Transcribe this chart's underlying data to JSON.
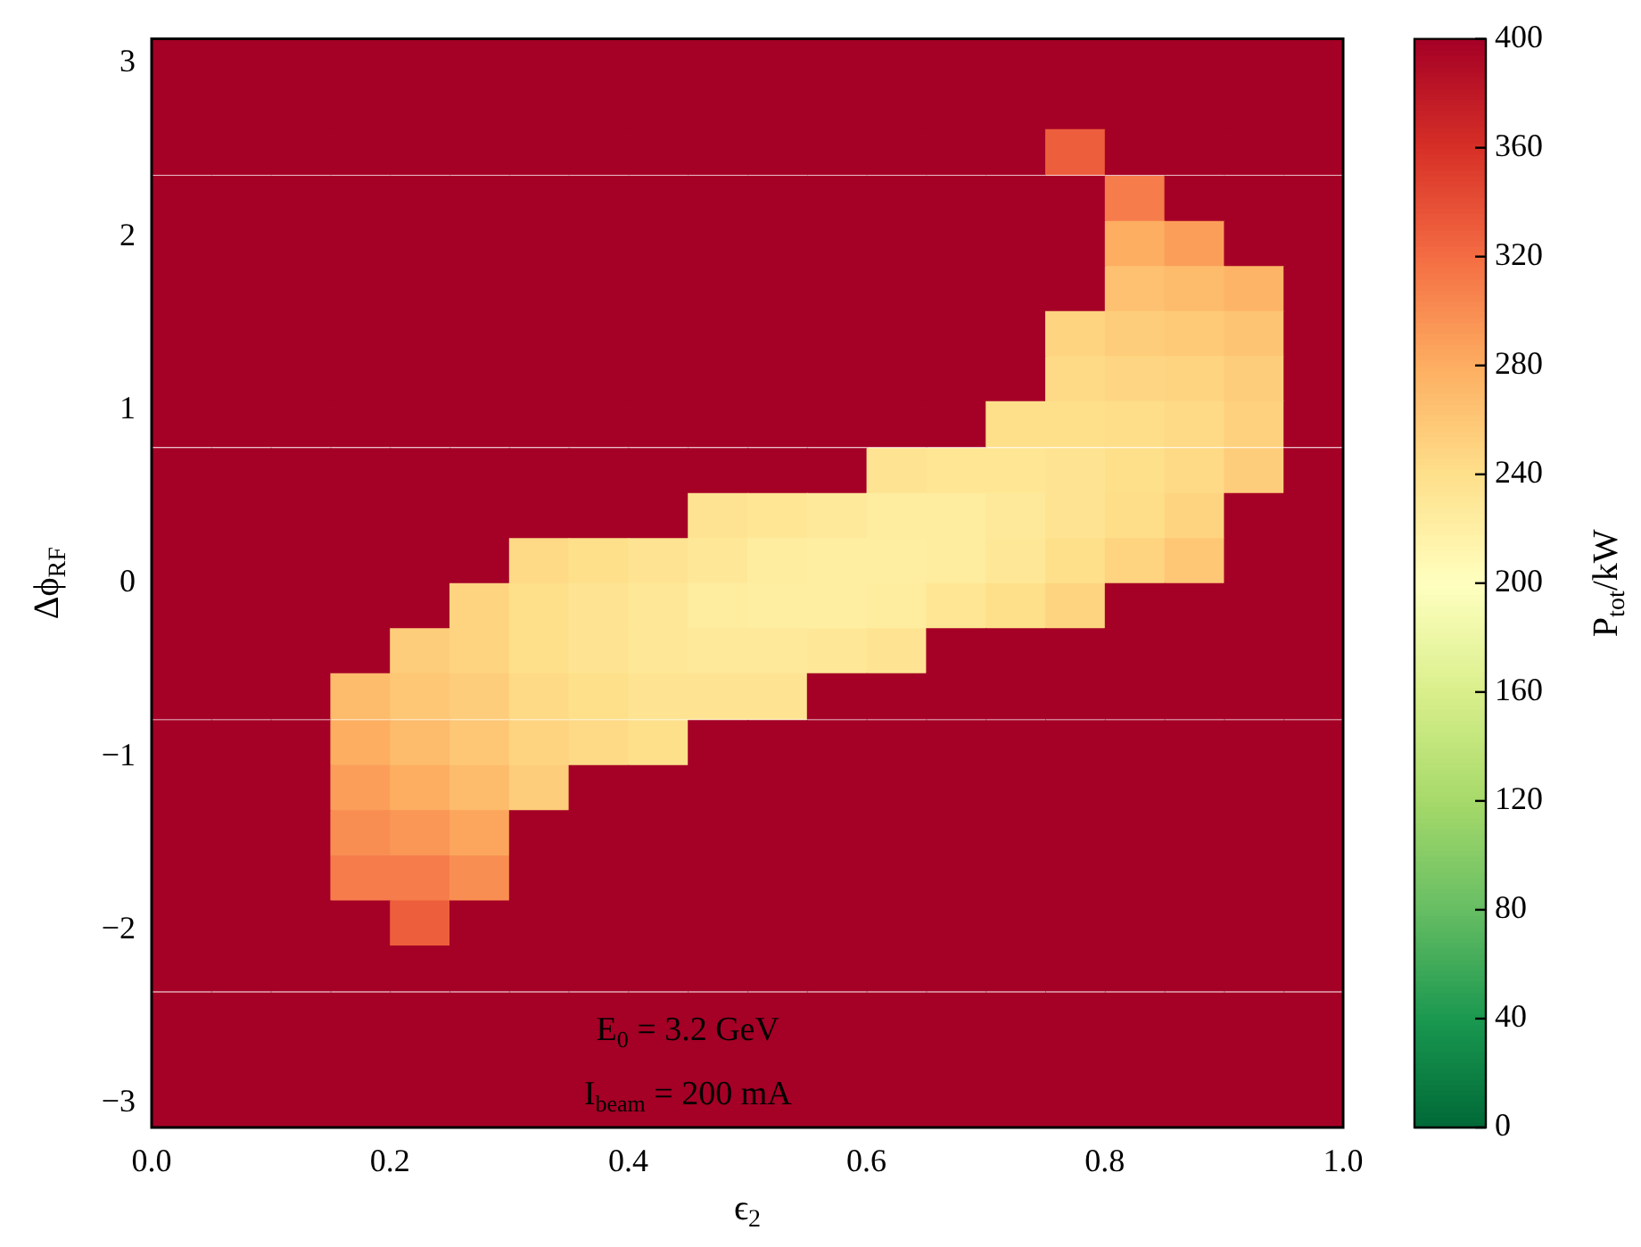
{
  "chart_data": {
    "type": "heatmap",
    "xlabel": "ϵ$_{2}$",
    "ylabel": "Δϕ$_{RF}$",
    "clabel": "P$_{tot}$/kW",
    "annotations": [
      "E$_{0}$ = 3.2 GeV",
      "I$_{beam}$ = 200 mA"
    ],
    "xlim": [
      0,
      1
    ],
    "xticks": [
      {
        "value": 0,
        "label": "0.0"
      },
      {
        "value": 0.2,
        "label": "0.2"
      },
      {
        "value": 0.4,
        "label": "0.4"
      },
      {
        "value": 0.6,
        "label": "0.6"
      },
      {
        "value": 0.8,
        "label": "0.8"
      },
      {
        "value": 1,
        "label": "1.0"
      }
    ],
    "ylim": [
      -3.14,
      3.14
    ],
    "yticks": [
      {
        "value": -3,
        "label": "−3"
      },
      {
        "value": -2,
        "label": "−2"
      },
      {
        "value": -1,
        "label": "−1"
      },
      0,
      1,
      2,
      3
    ],
    "clim": [
      0,
      400
    ],
    "cticks": [
      0,
      40,
      80,
      120,
      160,
      200,
      240,
      280,
      320,
      360,
      400
    ],
    "x": [
      0.025,
      0.075,
      0.125,
      0.175,
      0.225,
      0.275,
      0.325,
      0.375,
      0.425,
      0.475,
      0.525,
      0.575,
      0.625,
      0.675,
      0.725,
      0.775,
      0.825,
      0.875,
      0.925,
      0.975
    ],
    "y": [
      3.01,
      2.75,
      2.49,
      2.22,
      1.96,
      1.7,
      1.44,
      1.18,
      0.92,
      0.65,
      0.39,
      0.13,
      -0.13,
      -0.39,
      -0.65,
      -0.92,
      -1.18,
      -1.44,
      -1.7,
      -1.96,
      -2.22,
      -2.49,
      -2.75,
      -3.01
    ],
    "cells": [
      [
        400,
        400,
        400,
        400,
        400,
        400,
        400,
        400,
        400,
        400,
        400,
        400,
        400,
        400,
        400,
        400,
        400,
        400,
        400,
        400
      ],
      [
        400,
        400,
        400,
        400,
        400,
        400,
        400,
        400,
        400,
        400,
        400,
        400,
        400,
        400,
        400,
        400,
        400,
        400,
        400,
        400
      ],
      [
        400,
        400,
        400,
        400,
        400,
        400,
        400,
        400,
        400,
        400,
        400,
        400,
        400,
        400,
        400,
        330,
        400,
        400,
        400,
        400
      ],
      [
        400,
        400,
        400,
        400,
        400,
        400,
        400,
        400,
        400,
        400,
        400,
        400,
        400,
        400,
        400,
        400,
        310,
        400,
        400,
        400
      ],
      [
        400,
        400,
        400,
        400,
        400,
        400,
        400,
        400,
        400,
        400,
        400,
        400,
        400,
        400,
        400,
        400,
        280,
        290,
        400,
        400
      ],
      [
        400,
        400,
        400,
        400,
        400,
        400,
        400,
        400,
        400,
        400,
        400,
        400,
        400,
        400,
        400,
        400,
        265,
        270,
        275,
        400
      ],
      [
        400,
        400,
        400,
        400,
        400,
        400,
        400,
        400,
        400,
        400,
        400,
        400,
        400,
        400,
        400,
        250,
        255,
        258,
        262,
        400
      ],
      [
        400,
        400,
        400,
        400,
        400,
        400,
        400,
        400,
        400,
        400,
        400,
        400,
        400,
        400,
        400,
        245,
        248,
        250,
        255,
        400
      ],
      [
        400,
        400,
        400,
        400,
        400,
        400,
        400,
        400,
        400,
        400,
        400,
        400,
        400,
        400,
        240,
        240,
        242,
        245,
        252,
        400
      ],
      [
        400,
        400,
        400,
        400,
        400,
        400,
        400,
        400,
        400,
        400,
        400,
        400,
        235,
        232,
        232,
        235,
        240,
        245,
        255,
        400
      ],
      [
        400,
        400,
        400,
        400,
        400,
        400,
        400,
        400,
        400,
        235,
        232,
        228,
        225,
        225,
        228,
        235,
        242,
        250,
        400,
        400
      ],
      [
        400,
        400,
        400,
        400,
        400,
        400,
        245,
        240,
        235,
        230,
        225,
        222,
        222,
        225,
        230,
        240,
        250,
        260,
        400,
        400
      ],
      [
        400,
        400,
        400,
        400,
        400,
        250,
        240,
        235,
        230,
        225,
        222,
        222,
        225,
        232,
        240,
        250,
        400,
        400,
        400,
        400
      ],
      [
        400,
        400,
        400,
        400,
        255,
        250,
        240,
        235,
        230,
        228,
        228,
        230,
        235,
        400,
        400,
        400,
        400,
        400,
        400,
        400
      ],
      [
        400,
        400,
        400,
        270,
        260,
        255,
        245,
        240,
        235,
        235,
        235,
        400,
        400,
        400,
        400,
        400,
        400,
        400,
        400,
        400
      ],
      [
        400,
        400,
        400,
        280,
        270,
        260,
        250,
        245,
        240,
        400,
        400,
        400,
        400,
        400,
        400,
        400,
        400,
        400,
        400,
        400
      ],
      [
        400,
        400,
        400,
        290,
        280,
        270,
        255,
        400,
        400,
        400,
        400,
        400,
        400,
        400,
        400,
        400,
        400,
        400,
        400,
        400
      ],
      [
        400,
        400,
        400,
        300,
        295,
        285,
        400,
        400,
        400,
        400,
        400,
        400,
        400,
        400,
        400,
        400,
        400,
        400,
        400,
        400
      ],
      [
        400,
        400,
        400,
        310,
        310,
        300,
        400,
        400,
        400,
        400,
        400,
        400,
        400,
        400,
        400,
        400,
        400,
        400,
        400,
        400
      ],
      [
        400,
        400,
        400,
        400,
        330,
        400,
        400,
        400,
        400,
        400,
        400,
        400,
        400,
        400,
        400,
        400,
        400,
        400,
        400,
        400
      ],
      [
        400,
        400,
        400,
        400,
        400,
        400,
        400,
        400,
        400,
        400,
        400,
        400,
        400,
        400,
        400,
        400,
        400,
        400,
        400,
        400
      ],
      [
        400,
        400,
        400,
        400,
        400,
        400,
        400,
        400,
        400,
        400,
        400,
        400,
        400,
        400,
        400,
        400,
        400,
        400,
        400,
        400
      ],
      [
        400,
        400,
        400,
        400,
        400,
        400,
        400,
        400,
        400,
        400,
        400,
        400,
        400,
        400,
        400,
        400,
        400,
        400,
        400,
        400
      ],
      [
        400,
        400,
        400,
        400,
        400,
        400,
        400,
        400,
        400,
        400,
        400,
        400,
        400,
        400,
        400,
        400,
        400,
        400,
        400,
        400
      ]
    ]
  }
}
